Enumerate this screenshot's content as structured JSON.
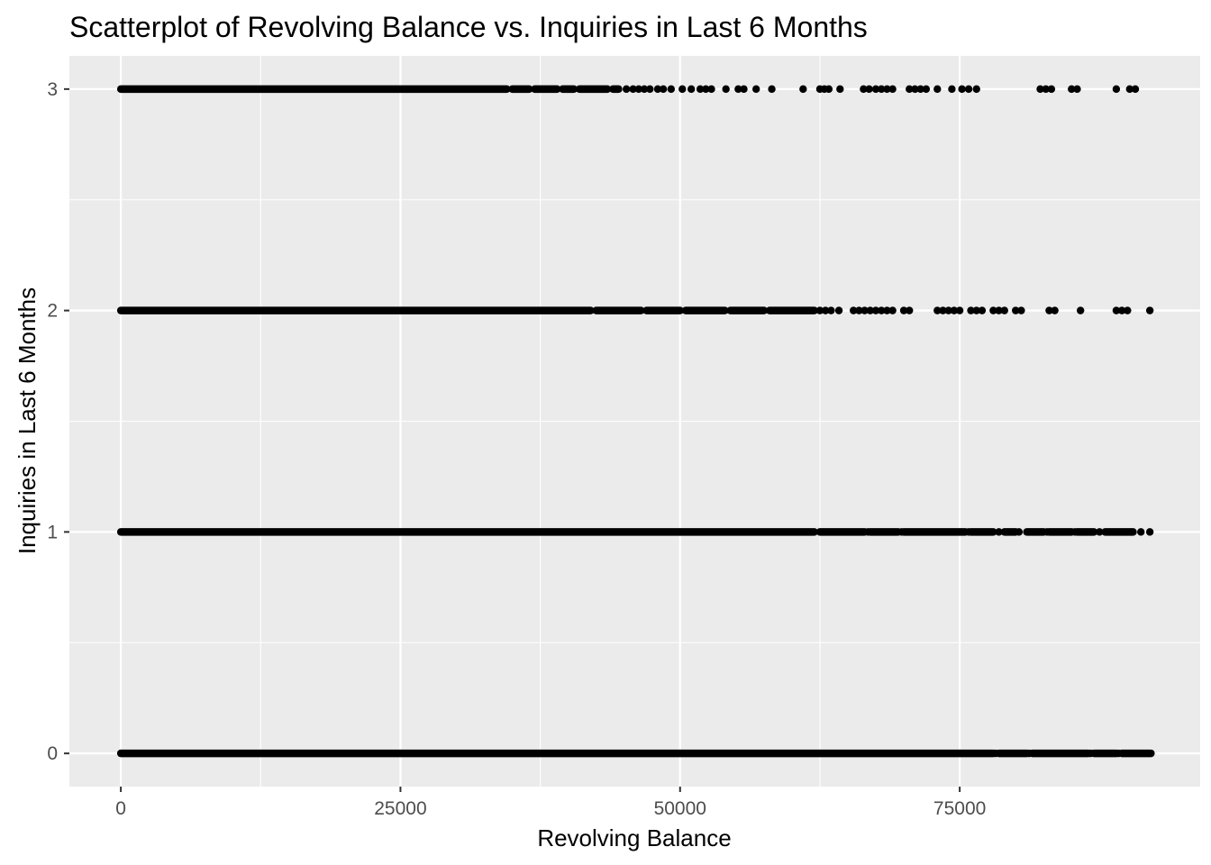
{
  "chart_data": {
    "type": "scatter",
    "title": "Scatterplot of Revolving Balance vs. Inquiries in Last 6 Months",
    "xlabel": "Revolving Balance",
    "ylabel": "Inquiries in Last 6 Months",
    "xlim": [
      -4600,
      96500
    ],
    "ylim": [
      -0.15,
      3.15
    ],
    "x_ticks": [
      0,
      25000,
      50000,
      75000
    ],
    "x_tick_labels": [
      "0",
      "25000",
      "50000",
      "75000"
    ],
    "y_ticks": [
      0,
      1,
      2,
      3
    ],
    "y_tick_labels": [
      "0",
      "1",
      "2",
      "3"
    ],
    "grid": true,
    "panel_color": "#ebebeb",
    "grid_color": "#ffffff",
    "point_color": "#000000",
    "rows": [
      {
        "y": 0,
        "dense_ranges": [
          [
            0,
            78000
          ],
          [
            78500,
            81000
          ],
          [
            81500,
            86500
          ],
          [
            87000,
            89000
          ],
          [
            89500,
            92000
          ]
        ],
        "points": [
          78200,
          81200,
          86700,
          89200,
          92100
        ]
      },
      {
        "y": 1,
        "dense_ranges": [
          [
            0,
            62000
          ],
          [
            62500,
            66500
          ],
          [
            67000,
            69500
          ],
          [
            70000,
            75500
          ],
          [
            76000,
            78000
          ],
          [
            79000,
            80000
          ],
          [
            81000,
            82500
          ],
          [
            83000,
            85000
          ],
          [
            85500,
            87000
          ],
          [
            88000,
            90500
          ]
        ],
        "points": [
          66800,
          69800,
          75800,
          78500,
          80300,
          82800,
          85300,
          87500,
          91200,
          92000
        ]
      },
      {
        "y": 2,
        "dense_ranges": [
          [
            0,
            42000
          ],
          [
            42500,
            46500
          ],
          [
            47000,
            50000
          ],
          [
            50500,
            54000
          ],
          [
            54500,
            57500
          ],
          [
            58000,
            62000
          ]
        ],
        "points": [
          62500,
          63000,
          63500,
          64200,
          65500,
          66000,
          66500,
          67000,
          67500,
          68000,
          68500,
          69000,
          70000,
          70500,
          73000,
          73500,
          74000,
          74500,
          75000,
          76000,
          76500,
          77000,
          78000,
          78500,
          79000,
          80000,
          80500,
          83000,
          83500,
          85800,
          89000,
          89500,
          90000,
          92000
        ]
      },
      {
        "y": 3,
        "dense_ranges": [
          [
            0,
            34500
          ],
          [
            35000,
            36500
          ],
          [
            37000,
            39000
          ],
          [
            39500,
            40500
          ],
          [
            41000,
            43500
          ],
          [
            44000,
            44500
          ]
        ],
        "points": [
          45200,
          45800,
          46300,
          46800,
          47300,
          48000,
          48500,
          49200,
          50200,
          51000,
          51800,
          52300,
          52800,
          54100,
          55200,
          55700,
          56800,
          58200,
          61000,
          62500,
          62900,
          63300,
          64300,
          66400,
          66900,
          67500,
          68000,
          68500,
          69000,
          70500,
          71000,
          71500,
          72000,
          73000,
          74300,
          75200,
          75800,
          76500,
          82200,
          82700,
          83200,
          85000,
          85500,
          89000,
          90200,
          90700
        ]
      }
    ]
  }
}
